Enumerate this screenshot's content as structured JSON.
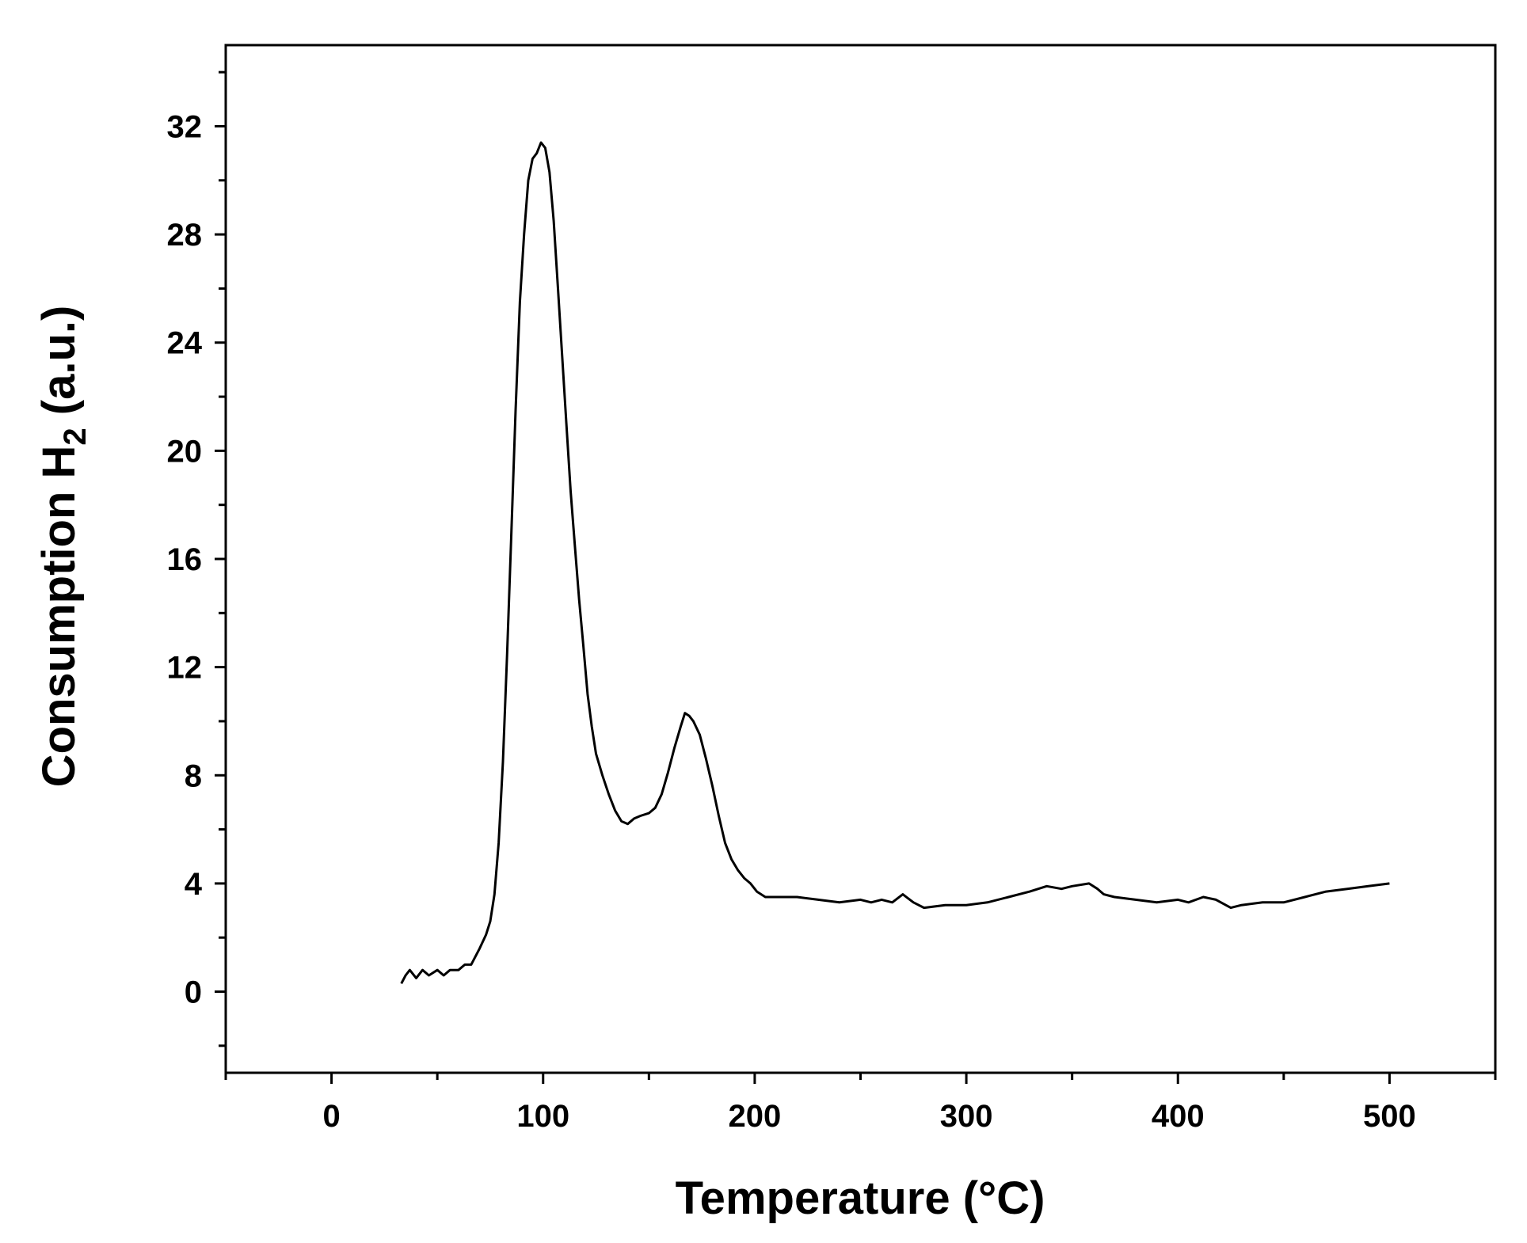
{
  "chart_data": {
    "type": "line",
    "title": "",
    "xlabel": "Temperature (°C)",
    "ylabel": {
      "main": "Consumption H",
      "subscript": "2",
      "suffix": " (a.u.)"
    },
    "xlim": [
      -50,
      550
    ],
    "ylim": [
      -3,
      35
    ],
    "xticks": [
      0,
      100,
      200,
      300,
      400,
      500
    ],
    "yticks": [
      0,
      4,
      8,
      12,
      16,
      20,
      24,
      28,
      32
    ],
    "x_minor_step": 50,
    "y_minor_step": 2,
    "grid": false,
    "legend": "none",
    "line_color": "#000000",
    "series": [
      {
        "points": [
          [
            33,
            0.3
          ],
          [
            35,
            0.6
          ],
          [
            37,
            0.8
          ],
          [
            40,
            0.5
          ],
          [
            43,
            0.8
          ],
          [
            46,
            0.6
          ],
          [
            50,
            0.8
          ],
          [
            53,
            0.6
          ],
          [
            56,
            0.8
          ],
          [
            60,
            0.8
          ],
          [
            63,
            1.0
          ],
          [
            66,
            1.0
          ],
          [
            70,
            1.6
          ],
          [
            73,
            2.1
          ],
          [
            75,
            2.6
          ],
          [
            77,
            3.6
          ],
          [
            79,
            5.5
          ],
          [
            81,
            8.5
          ],
          [
            83,
            12.5
          ],
          [
            85,
            17.0
          ],
          [
            87,
            21.5
          ],
          [
            89,
            25.5
          ],
          [
            91,
            28.0
          ],
          [
            93,
            30.0
          ],
          [
            95,
            30.8
          ],
          [
            97,
            31.0
          ],
          [
            99,
            31.4
          ],
          [
            101,
            31.2
          ],
          [
            103,
            30.3
          ],
          [
            105,
            28.5
          ],
          [
            107,
            26.0
          ],
          [
            109,
            23.5
          ],
          [
            111,
            21.0
          ],
          [
            113,
            18.5
          ],
          [
            115,
            16.5
          ],
          [
            117,
            14.5
          ],
          [
            119,
            12.8
          ],
          [
            121,
            11.0
          ],
          [
            123,
            9.8
          ],
          [
            125,
            8.8
          ],
          [
            128,
            8.0
          ],
          [
            131,
            7.3
          ],
          [
            134,
            6.7
          ],
          [
            137,
            6.3
          ],
          [
            140,
            6.2
          ],
          [
            143,
            6.4
          ],
          [
            146,
            6.5
          ],
          [
            150,
            6.6
          ],
          [
            153,
            6.8
          ],
          [
            156,
            7.3
          ],
          [
            159,
            8.1
          ],
          [
            162,
            9.0
          ],
          [
            165,
            9.8
          ],
          [
            167,
            10.3
          ],
          [
            169,
            10.2
          ],
          [
            171,
            10.0
          ],
          [
            174,
            9.5
          ],
          [
            177,
            8.6
          ],
          [
            180,
            7.6
          ],
          [
            183,
            6.5
          ],
          [
            186,
            5.5
          ],
          [
            189,
            4.9
          ],
          [
            192,
            4.5
          ],
          [
            195,
            4.2
          ],
          [
            198,
            4.0
          ],
          [
            201,
            3.7
          ],
          [
            205,
            3.5
          ],
          [
            210,
            3.5
          ],
          [
            220,
            3.5
          ],
          [
            230,
            3.4
          ],
          [
            240,
            3.3
          ],
          [
            250,
            3.4
          ],
          [
            255,
            3.3
          ],
          [
            260,
            3.4
          ],
          [
            265,
            3.3
          ],
          [
            270,
            3.6
          ],
          [
            275,
            3.3
          ],
          [
            280,
            3.1
          ],
          [
            290,
            3.2
          ],
          [
            300,
            3.2
          ],
          [
            310,
            3.3
          ],
          [
            320,
            3.5
          ],
          [
            330,
            3.7
          ],
          [
            338,
            3.9
          ],
          [
            345,
            3.8
          ],
          [
            350,
            3.9
          ],
          [
            358,
            4.0
          ],
          [
            362,
            3.8
          ],
          [
            365,
            3.6
          ],
          [
            370,
            3.5
          ],
          [
            380,
            3.4
          ],
          [
            390,
            3.3
          ],
          [
            400,
            3.4
          ],
          [
            405,
            3.3
          ],
          [
            412,
            3.5
          ],
          [
            418,
            3.4
          ],
          [
            425,
            3.1
          ],
          [
            430,
            3.2
          ],
          [
            440,
            3.3
          ],
          [
            450,
            3.3
          ],
          [
            460,
            3.5
          ],
          [
            470,
            3.7
          ],
          [
            480,
            3.8
          ],
          [
            490,
            3.9
          ],
          [
            500,
            4.0
          ]
        ]
      }
    ]
  }
}
